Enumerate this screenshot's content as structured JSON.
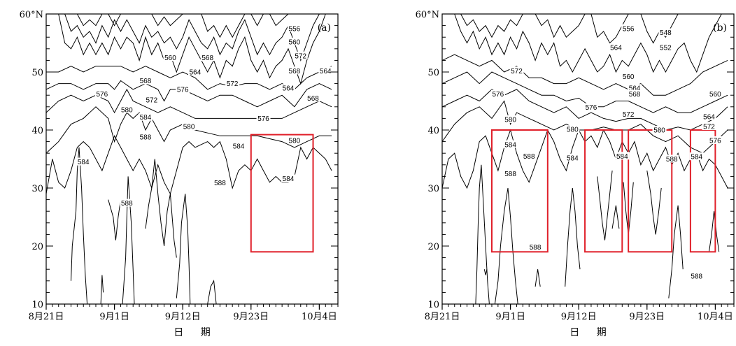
{
  "chart_data": [
    {
      "type": "contour",
      "panel_label": "(a)",
      "ylim": [
        10,
        60
      ],
      "yticks": [
        10,
        20,
        30,
        40,
        50,
        60
      ],
      "ytick_labels": [
        "10",
        "20",
        "30",
        "40",
        "50",
        "60°N"
      ],
      "xlim": [
        "8月21日",
        "10月7日"
      ],
      "xticks": [
        "8月21日",
        "9月1日",
        "9月12日",
        "9月23日",
        "10月4日"
      ],
      "xlabel": "日 期",
      "contour_labels": [
        {
          "value": "556",
          "x": "9月30日",
          "y": 57.5
        },
        {
          "value": "560",
          "x": "9月30日",
          "y": 55.2
        },
        {
          "value": "572",
          "x": "10月1日",
          "y": 52.8
        },
        {
          "value": "568",
          "x": "9月30日",
          "y": 50.2
        },
        {
          "value": "564",
          "x": "10月5日",
          "y": 50.2
        },
        {
          "value": "560",
          "x": "9月10日",
          "y": 52.5
        },
        {
          "value": "568",
          "x": "9月16日",
          "y": 52.5
        },
        {
          "value": "564",
          "x": "9月14日",
          "y": 50
        },
        {
          "value": "568",
          "x": "9月6日",
          "y": 48.5
        },
        {
          "value": "572",
          "x": "9月20日",
          "y": 48
        },
        {
          "value": "564",
          "x": "9月29日",
          "y": 47.2
        },
        {
          "value": "576",
          "x": "8月30日",
          "y": 46.2
        },
        {
          "value": "576",
          "x": "9月12日",
          "y": 47
        },
        {
          "value": "572",
          "x": "9月7日",
          "y": 45.2
        },
        {
          "value": "568",
          "x": "10月3日",
          "y": 45.5
        },
        {
          "value": "580",
          "x": "9月3日",
          "y": 43.5
        },
        {
          "value": "584",
          "x": "9月6日",
          "y": 42.2
        },
        {
          "value": "576",
          "x": "9月25日",
          "y": 42
        },
        {
          "value": "580",
          "x": "9月13日",
          "y": 40.6
        },
        {
          "value": "588",
          "x": "9月6日",
          "y": 38.8
        },
        {
          "value": "584",
          "x": "9月21日",
          "y": 37.2
        },
        {
          "value": "580",
          "x": "9月30日",
          "y": 38.2
        },
        {
          "value": "584",
          "x": "8月27日",
          "y": 34.5
        },
        {
          "value": "584",
          "x": "9月29日",
          "y": 31.6
        },
        {
          "value": "588",
          "x": "9月3日",
          "y": 27.4
        },
        {
          "value": "588",
          "x": "9月18日",
          "y": 30.9
        }
      ],
      "boxes": [
        {
          "x0": "9月23日",
          "x1": "10月3日",
          "y0": 19,
          "y1": 39.2
        }
      ]
    },
    {
      "type": "contour",
      "panel_label": "(b)",
      "ylim": [
        10,
        60
      ],
      "yticks": [
        10,
        20,
        30,
        40,
        50,
        60
      ],
      "ytick_labels": [
        "10",
        "20",
        "30",
        "40",
        "50",
        "60°N"
      ],
      "xlim": [
        "8月21日",
        "10月7日"
      ],
      "xticks": [
        "8月21日",
        "9月1日",
        "9月12日",
        "9月23日",
        "10月4日"
      ],
      "xlabel": "日 期",
      "contour_labels": [
        {
          "value": "556",
          "x": "9月20日",
          "y": 57.5
        },
        {
          "value": "548",
          "x": "9月26日",
          "y": 56.8
        },
        {
          "value": "552",
          "x": "9月26日",
          "y": 54.2
        },
        {
          "value": "564",
          "x": "9月18日",
          "y": 54.2
        },
        {
          "value": "572",
          "x": "9月2日",
          "y": 50.2
        },
        {
          "value": "560",
          "x": "9月20日",
          "y": 49.2
        },
        {
          "value": "576",
          "x": "8月30日",
          "y": 46.2
        },
        {
          "value": "564",
          "x": "9月21日",
          "y": 47.2
        },
        {
          "value": "568",
          "x": "9月21日",
          "y": 46.2
        },
        {
          "value": "560",
          "x": "10月4日",
          "y": 46.2
        },
        {
          "value": "576",
          "x": "9月14日",
          "y": 43.9
        },
        {
          "value": "572",
          "x": "9月20日",
          "y": 42.7
        },
        {
          "value": "564",
          "x": "10月3日",
          "y": 42.3
        },
        {
          "value": "580",
          "x": "9月1日",
          "y": 41.8
        },
        {
          "value": "568",
          "x": "10月3日",
          "y": 40.7
        },
        {
          "value": "580",
          "x": "9月11日",
          "y": 40.1
        },
        {
          "value": "572",
          "x": "10月3日",
          "y": 40.6
        },
        {
          "value": "580",
          "x": "9月25日",
          "y": 40
        },
        {
          "value": "576",
          "x": "10月4日",
          "y": 38.2
        },
        {
          "value": "584",
          "x": "9月1日",
          "y": 37.5
        },
        {
          "value": "584",
          "x": "9月11日",
          "y": 35.2
        },
        {
          "value": "588",
          "x": "9月4日",
          "y": 35.5
        },
        {
          "value": "588",
          "x": "9月27日",
          "y": 35
        },
        {
          "value": "584",
          "x": "9月19日",
          "y": 35.5
        },
        {
          "value": "584",
          "x": "10月1日",
          "y": 35.4
        },
        {
          "value": "588",
          "x": "9月1日",
          "y": 32.5
        },
        {
          "value": "588",
          "x": "9月5日",
          "y": 19.8
        },
        {
          "value": "588",
          "x": "10月1日",
          "y": 14.8
        }
      ],
      "boxes": [
        {
          "x0": "8月29日",
          "x1": "9月7日",
          "y0": 19,
          "y1": 40
        },
        {
          "x0": "9月13日",
          "x1": "9月19日",
          "y0": 19,
          "y1": 40
        },
        {
          "x0": "9月20日",
          "x1": "9月27日",
          "y0": 19,
          "y1": 40
        },
        {
          "x0": "9月30日",
          "x1": "10月4日",
          "y0": 19,
          "y1": 40
        }
      ]
    }
  ]
}
